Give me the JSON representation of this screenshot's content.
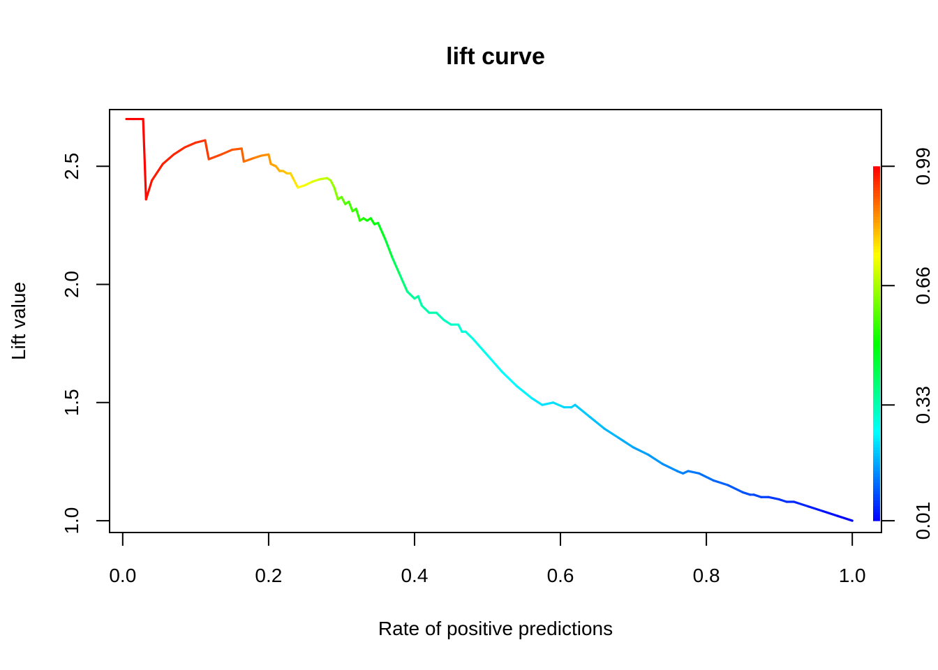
{
  "chart_data": {
    "type": "line",
    "title": "lift curve",
    "xlabel": "Rate of positive predictions",
    "ylabel": "Lift value",
    "xlim": [
      -0.018,
      1.04
    ],
    "ylim": [
      0.95,
      2.74
    ],
    "x_ticks": [
      "0.0",
      "0.2",
      "0.4",
      "0.6",
      "0.8",
      "1.0"
    ],
    "y_ticks": [
      "1.0",
      "1.5",
      "2.0",
      "2.5"
    ],
    "x_tick_values": [
      0.0,
      0.2,
      0.4,
      0.6,
      0.8,
      1.0
    ],
    "y_tick_values": [
      1.0,
      1.5,
      2.0,
      2.5
    ],
    "grid": false,
    "legend": "none",
    "colorbar": {
      "position": "right",
      "ticks": [
        "0.01",
        "0.33",
        "0.66",
        "0.99"
      ],
      "tick_values": [
        0.01,
        0.33,
        0.66,
        0.99
      ],
      "range": [
        0.01,
        0.99
      ],
      "colormap": "rainbow"
    },
    "series": [
      {
        "x": [
          0.005,
          0.028,
          0.032,
          0.04,
          0.055,
          0.07,
          0.085,
          0.1,
          0.113,
          0.118,
          0.135,
          0.15,
          0.163,
          0.166,
          0.18,
          0.19,
          0.2,
          0.203,
          0.21,
          0.215,
          0.22,
          0.225,
          0.23,
          0.235,
          0.24,
          0.25,
          0.26,
          0.27,
          0.28,
          0.285,
          0.29,
          0.295,
          0.3,
          0.305,
          0.31,
          0.315,
          0.32,
          0.325,
          0.33,
          0.335,
          0.34,
          0.345,
          0.35,
          0.36,
          0.37,
          0.38,
          0.39,
          0.4,
          0.405,
          0.41,
          0.42,
          0.43,
          0.44,
          0.45,
          0.46,
          0.465,
          0.47,
          0.48,
          0.5,
          0.52,
          0.54,
          0.56,
          0.565,
          0.575,
          0.59,
          0.605,
          0.615,
          0.62,
          0.64,
          0.66,
          0.68,
          0.7,
          0.72,
          0.74,
          0.76,
          0.768,
          0.775,
          0.79,
          0.81,
          0.83,
          0.85,
          0.86,
          0.865,
          0.875,
          0.885,
          0.9,
          0.91,
          0.92,
          0.94,
          0.96,
          0.98,
          1.0
        ],
        "y": [
          2.7,
          2.7,
          2.36,
          2.44,
          2.51,
          2.55,
          2.58,
          2.6,
          2.61,
          2.53,
          2.55,
          2.57,
          2.575,
          2.52,
          2.535,
          2.545,
          2.55,
          2.51,
          2.5,
          2.48,
          2.48,
          2.47,
          2.47,
          2.44,
          2.41,
          2.42,
          2.435,
          2.445,
          2.45,
          2.44,
          2.41,
          2.36,
          2.37,
          2.34,
          2.35,
          2.31,
          2.32,
          2.27,
          2.28,
          2.27,
          2.28,
          2.255,
          2.26,
          2.19,
          2.11,
          2.04,
          1.97,
          1.94,
          1.95,
          1.91,
          1.88,
          1.88,
          1.85,
          1.83,
          1.83,
          1.8,
          1.8,
          1.77,
          1.7,
          1.63,
          1.57,
          1.52,
          1.51,
          1.49,
          1.5,
          1.48,
          1.48,
          1.49,
          1.44,
          1.39,
          1.35,
          1.31,
          1.28,
          1.24,
          1.21,
          1.2,
          1.21,
          1.2,
          1.17,
          1.15,
          1.12,
          1.11,
          1.11,
          1.1,
          1.1,
          1.09,
          1.08,
          1.08,
          1.06,
          1.04,
          1.02,
          1.0
        ],
        "cutoff": [
          0.99,
          0.99,
          0.98,
          0.97,
          0.96,
          0.955,
          0.95,
          0.945,
          0.94,
          0.93,
          0.92,
          0.91,
          0.9,
          0.89,
          0.87,
          0.86,
          0.85,
          0.84,
          0.83,
          0.82,
          0.81,
          0.8,
          0.79,
          0.78,
          0.76,
          0.74,
          0.72,
          0.7,
          0.68,
          0.66,
          0.64,
          0.62,
          0.6,
          0.58,
          0.57,
          0.56,
          0.55,
          0.54,
          0.53,
          0.52,
          0.51,
          0.5,
          0.49,
          0.46,
          0.43,
          0.4,
          0.37,
          0.35,
          0.345,
          0.34,
          0.335,
          0.33,
          0.32,
          0.31,
          0.3,
          0.295,
          0.29,
          0.285,
          0.27,
          0.26,
          0.25,
          0.24,
          0.235,
          0.23,
          0.225,
          0.22,
          0.215,
          0.21,
          0.2,
          0.19,
          0.18,
          0.17,
          0.16,
          0.15,
          0.14,
          0.135,
          0.13,
          0.125,
          0.11,
          0.1,
          0.09,
          0.085,
          0.08,
          0.075,
          0.07,
          0.06,
          0.055,
          0.05,
          0.04,
          0.03,
          0.02,
          0.01
        ]
      }
    ]
  }
}
